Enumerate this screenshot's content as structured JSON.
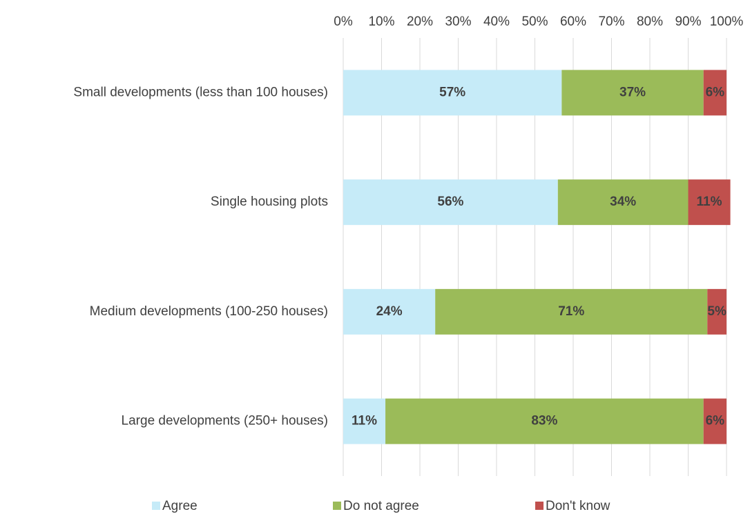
{
  "chart_data": {
    "type": "stacked_bar_horizontal",
    "categories": [
      "Small developments (less than 100 houses)",
      "Single housing plots",
      "Medium developments (100-250 houses)",
      "Large developments (250+ houses)"
    ],
    "series": [
      {
        "name": "Agree",
        "color": "#c6ebf8",
        "values": [
          57,
          56,
          24,
          11
        ],
        "value_labels": [
          "57%",
          "56%",
          "24%",
          "11%"
        ]
      },
      {
        "name": "Do not agree",
        "color": "#9bbb59",
        "values": [
          37,
          34,
          71,
          83
        ],
        "value_labels": [
          "37%",
          "34%",
          "71%",
          "83%"
        ]
      },
      {
        "name": "Don't know",
        "color": "#c0504d",
        "values": [
          6,
          11,
          5,
          6
        ],
        "value_labels": [
          "6%",
          "11%",
          "5%",
          "6%"
        ]
      }
    ],
    "xlim": [
      0,
      100
    ],
    "xticks": [
      {
        "value": 0,
        "label": "0%"
      },
      {
        "value": 10,
        "label": "10%"
      },
      {
        "value": 20,
        "label": "20%"
      },
      {
        "value": 30,
        "label": "30%"
      },
      {
        "value": 40,
        "label": "40%"
      },
      {
        "value": 50,
        "label": "50%"
      },
      {
        "value": 60,
        "label": "60%"
      },
      {
        "value": 70,
        "label": "70%"
      },
      {
        "value": 80,
        "label": "80%"
      },
      {
        "value": 90,
        "label": "90%"
      },
      {
        "value": 100,
        "label": "100%"
      }
    ],
    "grid": true,
    "legend": "bottom"
  }
}
